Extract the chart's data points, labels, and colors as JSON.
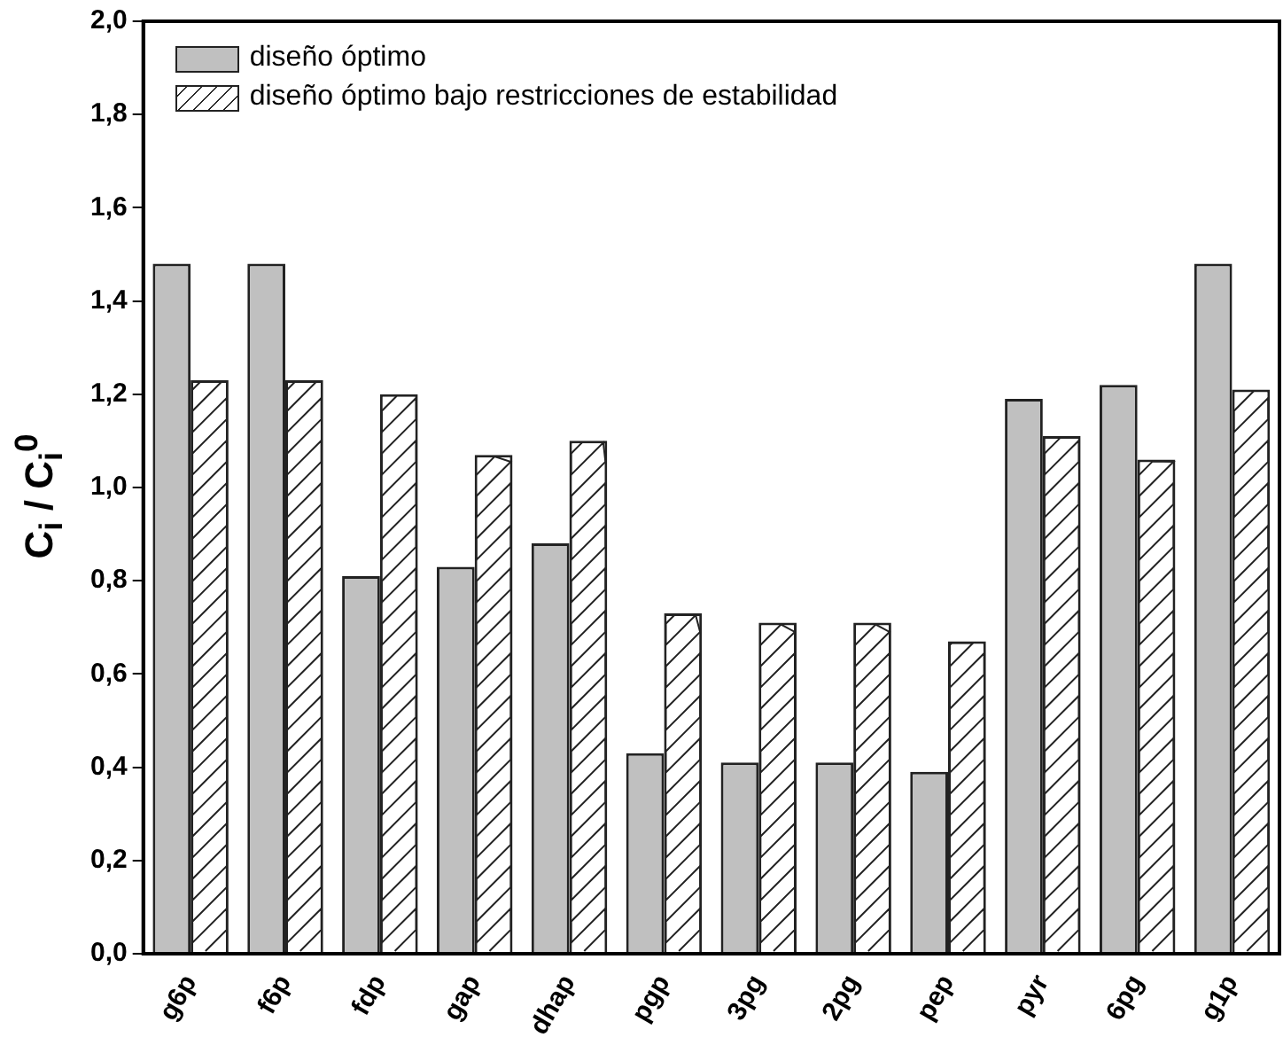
{
  "chart_data": {
    "type": "bar",
    "ylabel": "C$_{i}$ / C$_{i}$$^{0}$",
    "categories": [
      "g6p",
      "f6p",
      "fdp",
      "gap",
      "dhap",
      "pgp",
      "3pg",
      "2pg",
      "pep",
      "pyr",
      "6pg",
      "g1p"
    ],
    "series": [
      {
        "name": "diseño óptimo",
        "color": "#c0c0c0",
        "values": [
          1.48,
          1.48,
          0.81,
          0.83,
          0.88,
          0.43,
          0.41,
          0.41,
          0.39,
          1.19,
          1.22,
          1.48
        ]
      },
      {
        "name": "diseño óptimo bajo restricciones de estabilidad",
        "color": "#ffffff",
        "values": [
          1.23,
          1.23,
          1.2,
          1.07,
          1.1,
          0.73,
          0.71,
          0.71,
          0.67,
          1.11,
          1.06,
          1.21
        ]
      }
    ],
    "ylim": [
      0,
      2
    ],
    "yticks": [
      {
        "value": 0,
        "label": "0,0"
      },
      {
        "value": 0.2,
        "label": "0,2"
      },
      {
        "value": 0.4,
        "label": "0,4"
      },
      {
        "value": 0.6,
        "label": "0,6"
      },
      {
        "value": 0.8,
        "label": "0,8"
      },
      {
        "value": 1,
        "label": "1,0"
      },
      {
        "value": 1.2,
        "label": "1,2"
      },
      {
        "value": 1.4,
        "label": "1,4"
      },
      {
        "value": 1.6,
        "label": "1,6"
      },
      {
        "value": 1.8,
        "label": "1,8"
      },
      {
        "value": 2,
        "label": "2,0"
      }
    ],
    "grid": false,
    "legend": "top left"
  }
}
